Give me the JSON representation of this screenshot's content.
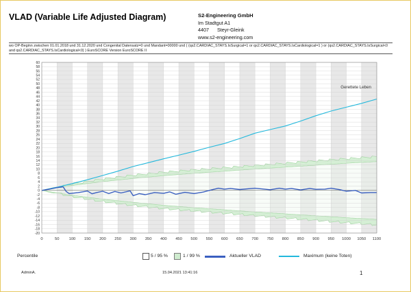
{
  "header": {
    "title": "VLAD (Variable Life Adjusted Diagram)",
    "company": "S2-Engineering GmbH",
    "street": "Im Stadtgut A1",
    "zip": "4407",
    "city": "Steyr-Gleink",
    "web": "www.s2-engineering.com"
  },
  "filter_text": "wo OP-Beginn zwischen 01.01.2018 und 31.12.2020 und Congenital Datensatz=0 und Mandant=00000 und ( (qs2.CARDIAC_STAYS.IsSurgical=1 or qs2.CARDIAC_STAYS.IsCardiological=1 ) or (qs2.CARDIAC_STAYS.IsSurgical<0 and qs2.CARDIAC_STAYS.IsCardiological<0) ) EuroSCORE Version EuroSCORE II",
  "chart_data": {
    "type": "line",
    "title": "VLAD (Variable Life Adjusted Diagram)",
    "annotation": "Gerettete Leben",
    "xlim": [
      0,
      1100
    ],
    "ylim": [
      -20,
      60
    ],
    "x_ticks": [
      0,
      50,
      100,
      150,
      200,
      250,
      300,
      350,
      400,
      450,
      500,
      550,
      600,
      650,
      700,
      750,
      800,
      850,
      900,
      950,
      1000,
      1050,
      1100
    ],
    "y_ticks": [
      -20,
      -18,
      -16,
      -14,
      -12,
      -10,
      -8,
      -6,
      -4,
      -2,
      0,
      2,
      4,
      6,
      8,
      10,
      12,
      14,
      16,
      18,
      20,
      22,
      24,
      26,
      28,
      30,
      32,
      34,
      36,
      38,
      40,
      42,
      44,
      46,
      48,
      50,
      52,
      54,
      56,
      58,
      60
    ],
    "grid": true,
    "series": [
      {
        "name": "Maximum (keine Toten)",
        "color": "#22b8dc",
        "x": [
          0,
          50,
          100,
          150,
          200,
          250,
          300,
          350,
          400,
          450,
          500,
          550,
          600,
          650,
          700,
          750,
          800,
          850,
          900,
          950,
          1000,
          1050,
          1100
        ],
        "y": [
          0,
          1.5,
          3.2,
          5.0,
          7.0,
          9.0,
          11.2,
          13.0,
          14.8,
          16.5,
          18.3,
          20.2,
          22.0,
          24.3,
          26.8,
          28.5,
          30.2,
          32.5,
          35.0,
          37.2,
          39.0,
          40.8,
          42.8
        ]
      },
      {
        "name": "Aktueller VLAD",
        "color": "#3a5fc0",
        "x": [
          0,
          25,
          50,
          70,
          80,
          90,
          120,
          150,
          165,
          180,
          200,
          220,
          240,
          260,
          290,
          300,
          320,
          340,
          370,
          400,
          420,
          440,
          470,
          500,
          530,
          550,
          580,
          600,
          620,
          650,
          680,
          700,
          750,
          780,
          800,
          820,
          850,
          880,
          900,
          930,
          950,
          980,
          1000,
          1030,
          1050,
          1080,
          1100
        ],
        "y": [
          0,
          0.6,
          1.3,
          1.7,
          -0.5,
          -1.5,
          -1.0,
          -0.3,
          -1.6,
          -1.0,
          -0.4,
          -1.5,
          -0.5,
          -1.2,
          -0.2,
          -2.5,
          -1.5,
          -2.0,
          -1.0,
          -1.4,
          -0.7,
          -1.8,
          -0.9,
          -1.5,
          -0.8,
          0.0,
          1.0,
          0.6,
          0.9,
          0.4,
          0.8,
          1.0,
          0.3,
          1.0,
          0.6,
          0.9,
          0.2,
          0.9,
          0.5,
          0.6,
          1.0,
          0.3,
          -0.4,
          0.0,
          -1.2,
          -1.0,
          -1.0
        ]
      },
      {
        "name": "1 / 99 %",
        "x": [
          0,
          100,
          200,
          300,
          400,
          500,
          600,
          700,
          800,
          900,
          1000,
          1100
        ],
        "upper": [
          0,
          3.5,
          5.8,
          7.6,
          9.0,
          10.1,
          11.1,
          12.1,
          13.2,
          14.3,
          15.3,
          16.3
        ],
        "lower": [
          0,
          -3.4,
          -5.7,
          -7.5,
          -9.0,
          -10.1,
          -11.2,
          -12.3,
          -13.4,
          -14.5,
          -15.6,
          -16.6
        ]
      },
      {
        "name": "5 / 95 %",
        "x": [
          0,
          100,
          200,
          300,
          400,
          500,
          600,
          700,
          800,
          900,
          1000,
          1100
        ],
        "upper": [
          0,
          2.3,
          4.1,
          5.6,
          6.9,
          8.0,
          9.0,
          10.0,
          10.9,
          11.8,
          12.7,
          13.5
        ],
        "lower": [
          0,
          -2.3,
          -4.1,
          -5.6,
          -7.0,
          -8.1,
          -9.1,
          -10.1,
          -11.0,
          -11.9,
          -12.8,
          -13.6
        ]
      }
    ],
    "legend": {
      "title": "Percentile",
      "items": [
        "5 / 95 %",
        "1 / 99 %",
        "Aktueller VLAD",
        "Maximum (keine Toten)"
      ]
    }
  },
  "footer": {
    "user": "AdminA.",
    "timestamp": "15.04.2021 13:41:16",
    "page": "1"
  },
  "colors": {
    "band_outer": "#d5efd5",
    "band_inner": "#eaf7ea",
    "band_line": "#9fd39f",
    "stripe": "#e8e8e8"
  }
}
